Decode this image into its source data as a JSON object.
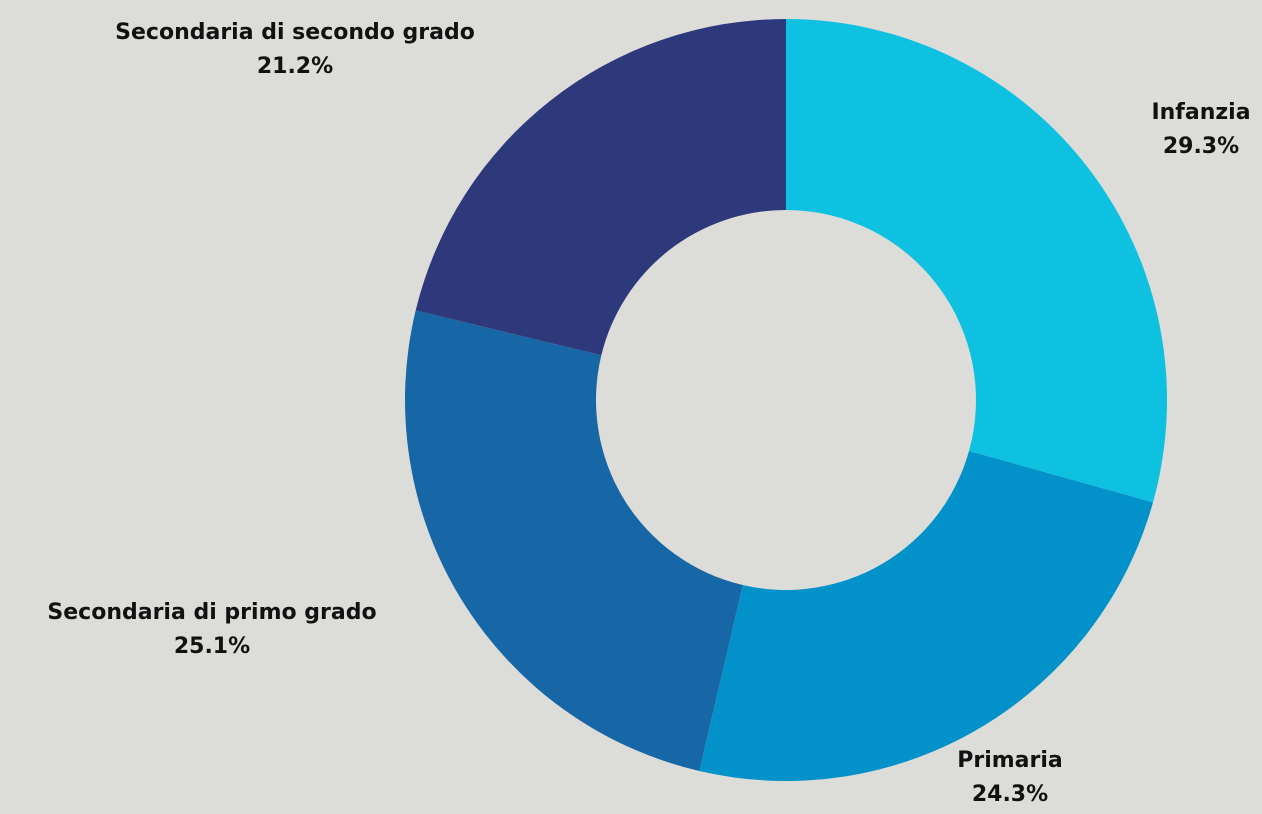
{
  "chart_data": {
    "type": "pie",
    "donut": true,
    "start_angle_deg": 0,
    "direction": "clockwise",
    "title": "",
    "slices": [
      {
        "label": "Infanzia",
        "value": 29.3,
        "value_label": "29.3%",
        "color": "#0fc1e0"
      },
      {
        "label": "Primaria",
        "value": 24.3,
        "value_label": "24.3%",
        "color": "#0292c9"
      },
      {
        "label": "Secondaria di primo grado",
        "value": 25.1,
        "value_label": "25.1%",
        "color": "#1766a6"
      },
      {
        "label": "Secondaria di secondo grado",
        "value": 21.2,
        "value_label": "21.2%",
        "color": "#2e397c"
      }
    ]
  },
  "background_color": "#dcdcd9"
}
